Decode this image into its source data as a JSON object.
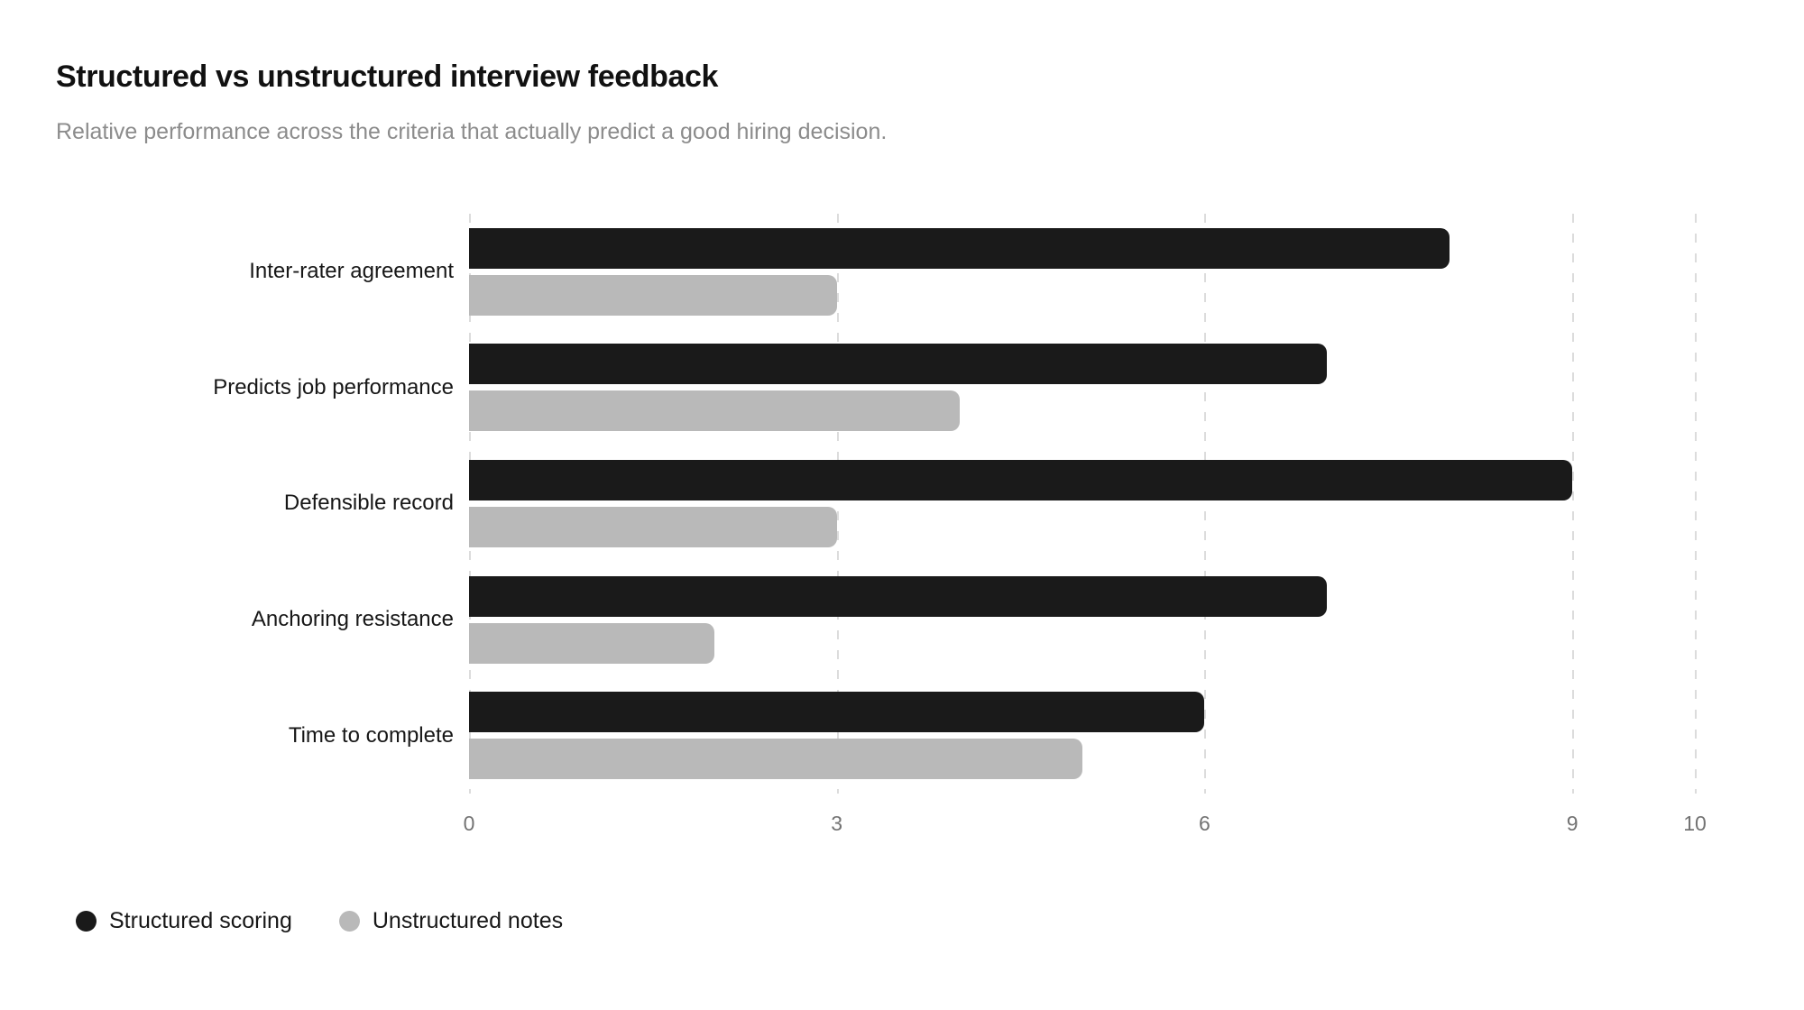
{
  "chart_data": {
    "type": "bar",
    "orientation": "horizontal",
    "title": "Structured vs unstructured interview feedback",
    "subtitle": "Relative performance across the criteria that actually predict a good hiring decision.",
    "categories": [
      "Inter-rater agreement",
      "Predicts job performance",
      "Defensible record",
      "Anchoring resistance",
      "Time to complete"
    ],
    "series": [
      {
        "name": "Structured scoring",
        "color": "#1a1a1a",
        "values": [
          8,
          7,
          9,
          7,
          6
        ]
      },
      {
        "name": "Unstructured notes",
        "color": "#b9b9b9",
        "values": [
          3,
          4,
          3,
          2,
          5
        ]
      }
    ],
    "x_ticks": [
      0,
      3,
      6,
      9,
      10
    ],
    "xlim": [
      0,
      10
    ],
    "grid": "dashed-vertical",
    "legend_position": "bottom-left",
    "colors": {
      "background": "#ffffff",
      "gridline": "#dcdcdc",
      "tick_label": "#737373",
      "category_label": "#171717",
      "title": "#111111",
      "subtitle": "#8c8c8c"
    }
  }
}
